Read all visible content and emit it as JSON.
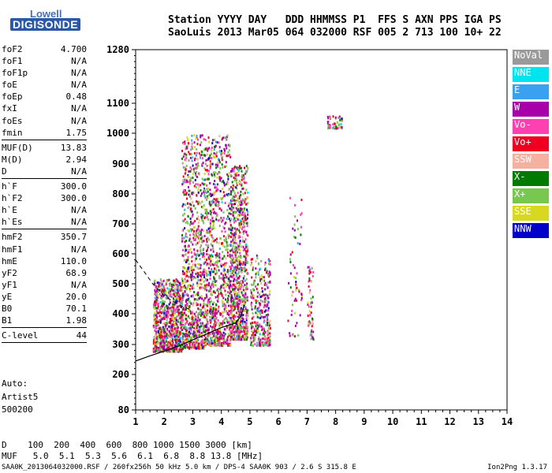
{
  "logo": {
    "top": "Lowell",
    "bottom": "DIGISONDE"
  },
  "header": {
    "line1": "Station YYYY DAY   DDD HHMMSS P1  FFS S AXN PPS IGA PS",
    "line2": "SaoLuis 2013 Mar05 064 032000 RSF 005 2 713 100 10+ 22"
  },
  "params": [
    {
      "k": "foF2",
      "v": "4.700"
    },
    {
      "k": "foF1",
      "v": "N/A"
    },
    {
      "k": "foF1p",
      "v": "N/A"
    },
    {
      "k": "foE",
      "v": "N/A"
    },
    {
      "k": "foEp",
      "v": "0.48"
    },
    {
      "k": "fxI",
      "v": "N/A"
    },
    {
      "k": "foEs",
      "v": "N/A"
    },
    {
      "k": "fmin",
      "v": "1.75"
    },
    {
      "k": "MUF(D)",
      "v": "13.83"
    },
    {
      "k": "M(D)",
      "v": "2.94"
    },
    {
      "k": "D",
      "v": "N/A"
    },
    {
      "k": "h`F",
      "v": "300.0"
    },
    {
      "k": "h`F2",
      "v": "300.0"
    },
    {
      "k": "h`E",
      "v": "N/A"
    },
    {
      "k": "h`Es",
      "v": "N/A"
    },
    {
      "k": "hmF2",
      "v": "350.7"
    },
    {
      "k": "hmF1",
      "v": "N/A"
    },
    {
      "k": "hmE",
      "v": "110.0"
    },
    {
      "k": "yF2",
      "v": "68.9"
    },
    {
      "k": "yF1",
      "v": "N/A"
    },
    {
      "k": "yE",
      "v": "20.0"
    },
    {
      "k": "B0",
      "v": "70.1"
    },
    {
      "k": "B1",
      "v": "1.98"
    },
    {
      "k": "C-level",
      "v": "44"
    }
  ],
  "autoscale": {
    "label": "Auto:",
    "artist": "Artist5",
    "version": "500200"
  },
  "legend": [
    {
      "label": "NoVal",
      "color": "#9a9a9a"
    },
    {
      "label": "NNE",
      "color": "#00e4f0"
    },
    {
      "label": "E",
      "color": "#3aa0f0"
    },
    {
      "label": "W",
      "color": "#a800a8"
    },
    {
      "label": "Vo-",
      "color": "#ff40b0"
    },
    {
      "label": "Vo+",
      "color": "#f00020"
    },
    {
      "label": "SSW",
      "color": "#f5b0a0"
    },
    {
      "label": "X-",
      "color": "#007a00"
    },
    {
      "label": "X+",
      "color": "#78c850"
    },
    {
      "label": "SSE",
      "color": "#d8d820"
    },
    {
      "label": "NNW",
      "color": "#0000c8"
    }
  ],
  "footer": {
    "d_line": "D    100  200  400  600  800 1000 1500 3000 [km]",
    "muf_line": "MUF   5.0  5.1  5.3  5.6  6.1  6.8  8.8 13.8 [MHz]",
    "file_line": "SAA0K_2013064032000.RSF / 260fx256h 50 kHz 5.0 km / DPS-4 SAA0K 903 / 2.6 S 315.8 E",
    "ion2png": "Ion2Png 1.3.17"
  },
  "chart_data": {
    "type": "scatter",
    "x_ticks": [
      1,
      2,
      3,
      4,
      5,
      6,
      7,
      8,
      9,
      10,
      11,
      12,
      13,
      14
    ],
    "y_ticks": [
      80,
      200,
      300,
      400,
      500,
      600,
      700,
      800,
      900,
      1000,
      1100,
      1280
    ],
    "xlim": [
      1,
      14
    ],
    "ylim": [
      80,
      1280
    ],
    "y_scale": "nonlinear (ionogram)",
    "clusters": [
      {
        "x_range": [
          1.6,
          2.6
        ],
        "y_range": [
          280,
          520
        ],
        "density": "dense"
      },
      {
        "x_range": [
          2.6,
          3.4
        ],
        "y_range": [
          290,
          1000
        ],
        "density": "dense"
      },
      {
        "x_range": [
          3.4,
          4.3
        ],
        "y_range": [
          300,
          1000
        ],
        "density": "dense"
      },
      {
        "x_range": [
          4.3,
          4.9
        ],
        "y_range": [
          320,
          900
        ],
        "density": "dense"
      },
      {
        "x_range": [
          5.0,
          5.7
        ],
        "y_range": [
          300,
          600
        ],
        "density": "moderate"
      },
      {
        "x_range": [
          6.3,
          6.8
        ],
        "y_range": [
          330,
          800
        ],
        "density": "sparse"
      },
      {
        "x_range": [
          7.0,
          7.2
        ],
        "y_range": [
          320,
          560
        ],
        "density": "sparse"
      },
      {
        "x_range": [
          7.7,
          8.2
        ],
        "y_range": [
          1020,
          1060
        ],
        "density": "sparse"
      }
    ],
    "profile_curve_solid": [
      [
        1,
        245
      ],
      [
        1.5,
        262
      ],
      [
        2,
        278
      ],
      [
        2.5,
        295
      ],
      [
        3,
        315
      ],
      [
        3.5,
        335
      ],
      [
        4,
        355
      ],
      [
        4.5,
        370
      ],
      [
        4.7,
        395
      ],
      [
        4.8,
        430
      ]
    ],
    "profile_curve_dashed": [
      [
        1,
        580
      ],
      [
        1.3,
        540
      ],
      [
        1.6,
        500
      ],
      [
        2,
        460
      ],
      [
        2.5,
        430
      ],
      [
        3,
        410
      ]
    ]
  }
}
